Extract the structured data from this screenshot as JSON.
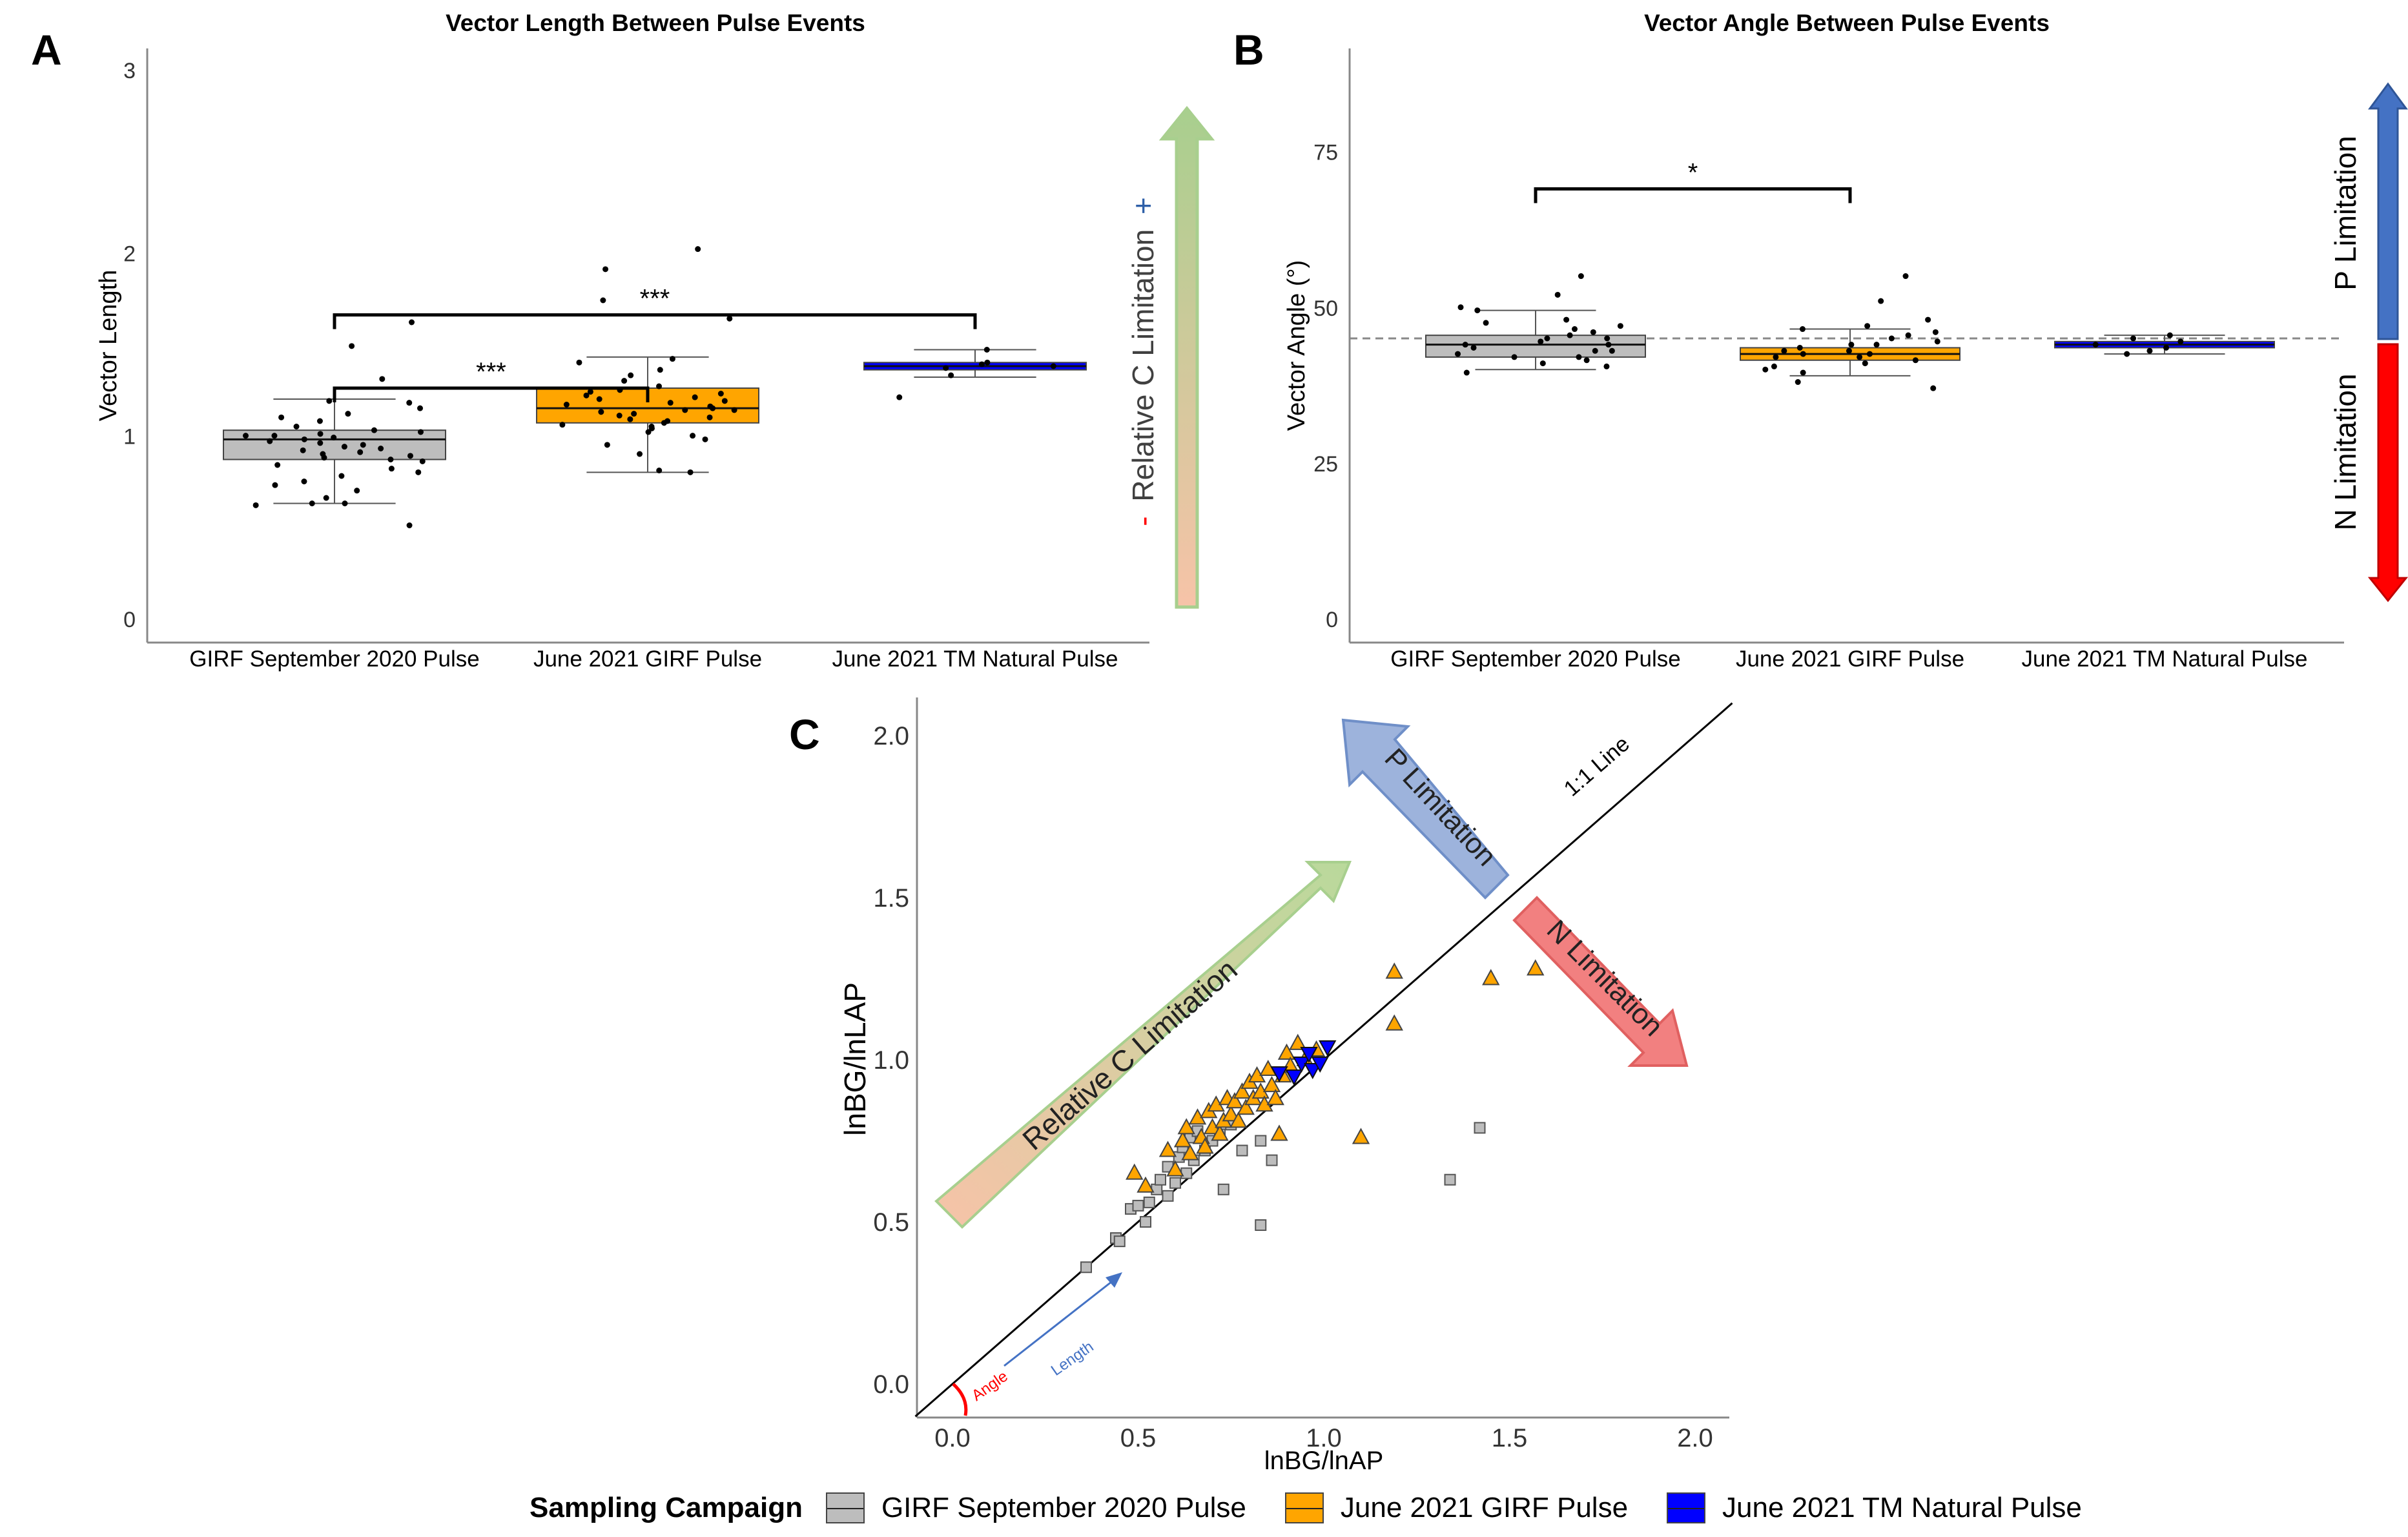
{
  "colors": {
    "gray": "#bdbdbd",
    "orange": "#ffa500",
    "blue": "#0000ff",
    "green_arrow": "#a8cf8e",
    "salmon": "#f7c3a8",
    "p_blue": "#4472c4",
    "n_red": "#ff0000",
    "p_arrow": "#9db3dc",
    "n_arrow": "#f28080"
  },
  "chart_data": [
    {
      "panel_label": "A",
      "type": "boxplot",
      "title": "Vector Length Between Pulse Events",
      "xlabel": "",
      "ylabel": "Vector Length",
      "ylim": [
        0,
        3
      ],
      "yticks": [
        "0",
        "1",
        "2",
        "3"
      ],
      "categories": [
        "GIRF September 2020 Pulse",
        "June 2021 GIRF Pulse",
        "June 2021 TM Natural Pulse"
      ],
      "series": [
        {
          "category": "GIRF September 2020 Pulse",
          "color": "gray",
          "min": 0.63,
          "q1": 0.87,
          "median": 0.98,
          "q3": 1.03,
          "max": 1.2,
          "points": [
            0.51,
            0.62,
            0.63,
            0.63,
            0.66,
            0.7,
            0.73,
            0.75,
            0.78,
            0.8,
            0.82,
            0.84,
            0.86,
            0.87,
            0.88,
            0.89,
            0.9,
            0.91,
            0.92,
            0.93,
            0.94,
            0.95,
            0.96,
            0.97,
            0.98,
            0.99,
            1.0,
            1.0,
            1.01,
            1.02,
            1.03,
            1.05,
            1.08,
            1.1,
            1.12,
            1.15,
            1.18,
            1.19,
            1.31,
            1.49,
            1.62
          ]
        },
        {
          "category": "June 2021 GIRF Pulse",
          "color": "orange",
          "min": 0.8,
          "q1": 1.07,
          "median": 1.15,
          "q3": 1.26,
          "max": 1.43,
          "points": [
            0.8,
            0.81,
            0.9,
            0.95,
            0.98,
            1.0,
            1.02,
            1.04,
            1.05,
            1.06,
            1.07,
            1.08,
            1.09,
            1.1,
            1.11,
            1.12,
            1.13,
            1.14,
            1.14,
            1.15,
            1.16,
            1.17,
            1.18,
            1.19,
            1.2,
            1.21,
            1.22,
            1.23,
            1.24,
            1.25,
            1.27,
            1.3,
            1.33,
            1.36,
            1.4,
            1.42,
            1.64,
            1.74,
            1.91,
            2.02
          ]
        },
        {
          "category": "June 2021 TM Natural Pulse",
          "color": "blue",
          "min": 1.32,
          "q1": 1.36,
          "median": 1.38,
          "q3": 1.4,
          "max": 1.47,
          "points": [
            1.21,
            1.33,
            1.37,
            1.38,
            1.39,
            1.4,
            1.47
          ]
        }
      ],
      "significance": [
        {
          "from": 0,
          "to": 1,
          "y": 1.26,
          "label": "***"
        },
        {
          "from": 0,
          "to": 2,
          "y": 1.66,
          "label": "***"
        }
      ],
      "side_arrow": {
        "label": "Relative C Limitation",
        "minus": "-",
        "plus": "+"
      }
    },
    {
      "panel_label": "B",
      "type": "boxplot",
      "title": "Vector Angle Between Pulse Events",
      "xlabel": "",
      "ylabel": "Vector Angle (°)",
      "ylim": [
        0,
        90
      ],
      "yticks": [
        "0",
        "25",
        "50",
        "75"
      ],
      "reference_line": 45,
      "categories": [
        "GIRF September 2020 Pulse",
        "June 2021 GIRF Pulse",
        "June 2021 TM Natural Pulse"
      ],
      "series": [
        {
          "category": "GIRF September 2020 Pulse",
          "color": "gray",
          "min": 40,
          "q1": 42,
          "median": 44,
          "q3": 45.5,
          "max": 49.5,
          "points": [
            39.5,
            40.5,
            41,
            41.5,
            42,
            42,
            42.5,
            43,
            43,
            43.5,
            44,
            44,
            44.5,
            45,
            45,
            45.5,
            46,
            46.5,
            47,
            47.5,
            48,
            49.5,
            50,
            52,
            55
          ]
        },
        {
          "category": "June 2021 GIRF Pulse",
          "color": "orange",
          "min": 39,
          "q1": 41.5,
          "median": 42.5,
          "q3": 43.5,
          "max": 46.5,
          "points": [
            37,
            38,
            39.5,
            40,
            40.5,
            41,
            41.5,
            42,
            42,
            42.5,
            42.5,
            43,
            43,
            43.5,
            44,
            44,
            44.5,
            45,
            45.5,
            46,
            46.5,
            47,
            48,
            51,
            55
          ]
        },
        {
          "category": "June 2021 TM Natural Pulse",
          "color": "blue",
          "min": 42.5,
          "q1": 43.5,
          "median": 44,
          "q3": 44.5,
          "max": 45.5,
          "points": [
            42.5,
            43,
            43.5,
            44,
            44.5,
            45,
            45.5
          ]
        }
      ],
      "significance": [
        {
          "from": 0,
          "to": 1,
          "y": 69,
          "label": "*"
        }
      ],
      "side_arrows": {
        "top": "P Limitation",
        "bottom": "N Limitation"
      }
    },
    {
      "panel_label": "C",
      "type": "scatter",
      "title": "",
      "xlabel": "lnBG/lnAP",
      "ylabel": "lnBG/lnLAP",
      "xlim": [
        -0.1,
        2.1
      ],
      "ylim": [
        -0.1,
        2.1
      ],
      "xticks": [
        "0.0",
        "0.5",
        "1.0",
        "1.5",
        "2.0"
      ],
      "yticks": [
        "0.0",
        "0.5",
        "1.0",
        "1.5",
        "2.0"
      ],
      "line_label": "1:1 Line",
      "annotations": {
        "angle": "Angle",
        "length": "Length",
        "c_limitation": "Relative C Limitation",
        "p_limitation": "P Limitation",
        "n_limitation": "N Limitation"
      },
      "series": [
        {
          "name": "GIRF September 2020 Pulse",
          "color": "gray",
          "marker": "square",
          "points": [
            [
              0.36,
              0.36
            ],
            [
              0.44,
              0.45
            ],
            [
              0.45,
              0.44
            ],
            [
              0.48,
              0.54
            ],
            [
              0.5,
              0.55
            ],
            [
              0.52,
              0.5
            ],
            [
              0.53,
              0.56
            ],
            [
              0.55,
              0.6
            ],
            [
              0.56,
              0.63
            ],
            [
              0.58,
              0.58
            ],
            [
              0.58,
              0.67
            ],
            [
              0.6,
              0.62
            ],
            [
              0.61,
              0.7
            ],
            [
              0.62,
              0.73
            ],
            [
              0.63,
              0.65
            ],
            [
              0.64,
              0.76
            ],
            [
              0.65,
              0.69
            ],
            [
              0.66,
              0.78
            ],
            [
              0.68,
              0.72
            ],
            [
              0.7,
              0.75
            ],
            [
              0.72,
              0.77
            ],
            [
              0.73,
              0.6
            ],
            [
              0.75,
              0.8
            ],
            [
              0.78,
              0.72
            ],
            [
              0.83,
              0.75
            ],
            [
              0.83,
              0.49
            ],
            [
              0.86,
              0.69
            ],
            [
              1.34,
              0.63
            ],
            [
              1.42,
              0.79
            ]
          ]
        },
        {
          "name": "June 2021 GIRF Pulse",
          "color": "orange",
          "marker": "triangle-up",
          "points": [
            [
              0.49,
              0.65
            ],
            [
              0.52,
              0.61
            ],
            [
              0.58,
              0.72
            ],
            [
              0.6,
              0.66
            ],
            [
              0.62,
              0.75
            ],
            [
              0.63,
              0.79
            ],
            [
              0.64,
              0.71
            ],
            [
              0.66,
              0.82
            ],
            [
              0.67,
              0.76
            ],
            [
              0.68,
              0.73
            ],
            [
              0.69,
              0.84
            ],
            [
              0.7,
              0.79
            ],
            [
              0.71,
              0.86
            ],
            [
              0.72,
              0.77
            ],
            [
              0.73,
              0.81
            ],
            [
              0.74,
              0.88
            ],
            [
              0.75,
              0.83
            ],
            [
              0.76,
              0.87
            ],
            [
              0.77,
              0.81
            ],
            [
              0.78,
              0.9
            ],
            [
              0.79,
              0.85
            ],
            [
              0.8,
              0.93
            ],
            [
              0.81,
              0.88
            ],
            [
              0.82,
              0.95
            ],
            [
              0.83,
              0.9
            ],
            [
              0.84,
              0.86
            ],
            [
              0.85,
              0.97
            ],
            [
              0.86,
              0.92
            ],
            [
              0.87,
              0.88
            ],
            [
              0.89,
              0.95
            ],
            [
              0.9,
              1.02
            ],
            [
              0.91,
              0.98
            ],
            [
              0.93,
              1.05
            ],
            [
              0.95,
              1.0
            ],
            [
              0.98,
              1.03
            ],
            [
              0.88,
              0.77
            ],
            [
              1.1,
              0.76
            ],
            [
              1.19,
              1.11
            ],
            [
              1.19,
              1.27
            ],
            [
              1.45,
              1.25
            ],
            [
              1.57,
              1.28
            ]
          ]
        },
        {
          "name": "June 2021 TM Natural Pulse",
          "color": "blue",
          "marker": "triangle-down",
          "points": [
            [
              0.88,
              0.96
            ],
            [
              0.92,
              0.95
            ],
            [
              0.94,
              0.99
            ],
            [
              0.96,
              1.02
            ],
            [
              0.97,
              0.97
            ],
            [
              0.99,
              0.99
            ],
            [
              1.01,
              1.04
            ]
          ]
        }
      ]
    }
  ],
  "legend": {
    "title": "Sampling Campaign",
    "items": [
      "GIRF September 2020 Pulse",
      "June 2021 GIRF Pulse",
      "June 2021 TM Natural Pulse"
    ]
  }
}
